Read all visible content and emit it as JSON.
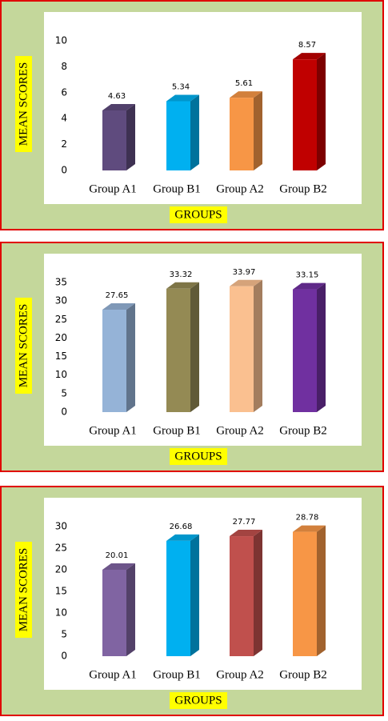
{
  "chart_data": [
    {
      "type": "bar",
      "y_label": "MEAN SCORES",
      "x_label": "GROUPS",
      "categories": [
        "Group A1",
        "Group B1",
        "Group A2",
        "Group B2"
      ],
      "values": [
        4.63,
        5.34,
        5.61,
        8.57
      ],
      "colors": [
        "#5f4b7e",
        "#00b0f0",
        "#f79646",
        "#c00000"
      ],
      "ylim": [
        0,
        10
      ],
      "yticks": [
        0,
        2,
        4,
        6,
        8,
        10
      ]
    },
    {
      "type": "bar",
      "y_label": "MEAN SCORES",
      "x_label": "GROUPS",
      "categories": [
        "Group A1",
        "Group B1",
        "Group A2",
        "Group B2"
      ],
      "values": [
        27.65,
        33.32,
        33.97,
        33.15
      ],
      "colors": [
        "#95b3d7",
        "#948a54",
        "#fac090",
        "#7030a0"
      ],
      "ylim": [
        0,
        35
      ],
      "yticks": [
        0,
        5,
        10,
        15,
        20,
        25,
        30,
        35
      ]
    },
    {
      "type": "bar",
      "y_label": "MEAN SCORES",
      "x_label": "GROUPS",
      "categories": [
        "Group A1",
        "Group B1",
        "Group A2",
        "Group B2"
      ],
      "values": [
        20.01,
        26.68,
        27.77,
        28.78
      ],
      "colors": [
        "#8064a2",
        "#00b0f0",
        "#c0504d",
        "#f79646"
      ],
      "ylim": [
        0,
        30
      ],
      "yticks": [
        0,
        5,
        10,
        15,
        20,
        25,
        30
      ]
    }
  ]
}
